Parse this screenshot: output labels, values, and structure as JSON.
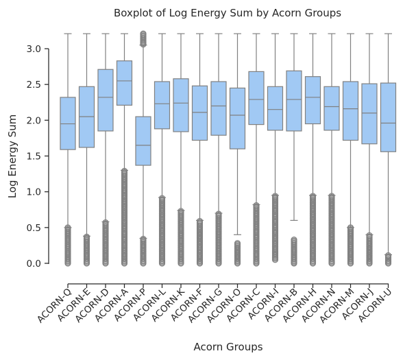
{
  "chart_data": {
    "type": "boxplot",
    "title": "Boxplot of Log Energy Sum by Acorn Groups",
    "xlabel": "Acorn Groups",
    "ylabel": "Log Energy Sum",
    "ylim": [
      -0.06,
      3.22
    ],
    "yticks": [
      0.0,
      0.5,
      1.0,
      1.5,
      2.0,
      2.5,
      3.0
    ],
    "ytick_labels": [
      "0.0",
      "0.5",
      "1.0",
      "1.5",
      "2.0",
      "2.5",
      "3.0"
    ],
    "grid": false,
    "box_color": "#a1c9f4",
    "line_color": "#808080",
    "categories": [
      "ACORN-Q",
      "ACORN-E",
      "ACORN-D",
      "ACORN-A",
      "ACORN-P",
      "ACORN-L",
      "ACORN-K",
      "ACORN-F",
      "ACORN-G",
      "ACORN-O",
      "ACORN-C",
      "ACORN-I",
      "ACORN-B",
      "ACORN-H",
      "ACORN-N",
      "ACORN-M",
      "ACORN-J",
      "ACORN-U"
    ],
    "boxes": [
      {
        "whislo": 0.5,
        "q1": 1.59,
        "med": 1.95,
        "q3": 2.32,
        "whishi": 3.21,
        "flier_low": [
          0.0,
          0.5
        ],
        "flier_high": null
      },
      {
        "whislo": 0.38,
        "q1": 1.62,
        "med": 2.05,
        "q3": 2.47,
        "whishi": 3.21,
        "flier_low": [
          0.0,
          0.37
        ],
        "flier_high": null
      },
      {
        "whislo": 0.58,
        "q1": 1.85,
        "med": 2.32,
        "q3": 2.71,
        "whishi": 3.21,
        "flier_low": [
          0.0,
          0.57
        ],
        "flier_high": null
      },
      {
        "whislo": 1.3,
        "q1": 2.21,
        "med": 2.55,
        "q3": 2.83,
        "whishi": 3.21,
        "flier_low": [
          0.0,
          1.29
        ],
        "flier_high": null
      },
      {
        "whislo": 0.35,
        "q1": 1.37,
        "med": 1.65,
        "q3": 2.05,
        "whishi": 3.05,
        "flier_low": [
          0.0,
          0.34
        ],
        "flier_high": [
          3.06,
          3.21
        ]
      },
      {
        "whislo": 0.92,
        "q1": 1.88,
        "med": 2.23,
        "q3": 2.54,
        "whishi": 3.21,
        "flier_low": [
          0.0,
          0.91
        ],
        "flier_high": null
      },
      {
        "whislo": 0.74,
        "q1": 1.84,
        "med": 2.24,
        "q3": 2.58,
        "whishi": 3.21,
        "flier_low": [
          0.0,
          0.73
        ],
        "flier_high": null
      },
      {
        "whislo": 0.6,
        "q1": 1.72,
        "med": 2.11,
        "q3": 2.48,
        "whishi": 3.21,
        "flier_low": [
          0.0,
          0.59
        ],
        "flier_high": null
      },
      {
        "whislo": 0.7,
        "q1": 1.79,
        "med": 2.2,
        "q3": 2.54,
        "whishi": 3.21,
        "flier_low": [
          0.0,
          0.69
        ],
        "flier_high": null
      },
      {
        "whislo": 0.4,
        "q1": 1.6,
        "med": 2.07,
        "q3": 2.45,
        "whishi": 3.21,
        "flier_low": [
          0.0,
          0.28
        ],
        "flier_high": null
      },
      {
        "whislo": 0.82,
        "q1": 1.94,
        "med": 2.29,
        "q3": 2.68,
        "whishi": 3.21,
        "flier_low": [
          0.0,
          0.81
        ],
        "flier_high": null
      },
      {
        "whislo": 0.95,
        "q1": 1.86,
        "med": 2.15,
        "q3": 2.47,
        "whishi": 3.21,
        "flier_low": [
          0.05,
          0.94
        ],
        "flier_high": null
      },
      {
        "whislo": 0.6,
        "q1": 1.85,
        "med": 2.29,
        "q3": 2.69,
        "whishi": 3.21,
        "flier_low": [
          0.0,
          0.33
        ],
        "flier_high": null
      },
      {
        "whislo": 0.95,
        "q1": 1.95,
        "med": 2.32,
        "q3": 2.61,
        "whishi": 3.21,
        "flier_low": [
          0.0,
          0.94
        ],
        "flier_high": null
      },
      {
        "whislo": 0.95,
        "q1": 1.86,
        "med": 2.19,
        "q3": 2.47,
        "whishi": 3.21,
        "flier_low": [
          0.0,
          0.94
        ],
        "flier_high": null
      },
      {
        "whislo": 0.5,
        "q1": 1.72,
        "med": 2.16,
        "q3": 2.54,
        "whishi": 3.21,
        "flier_low": [
          0.0,
          0.5
        ],
        "flier_high": null
      },
      {
        "whislo": 0.4,
        "q1": 1.67,
        "med": 2.1,
        "q3": 2.51,
        "whishi": 3.21,
        "flier_low": [
          0.0,
          0.39
        ],
        "flier_high": null
      },
      {
        "whislo": 0.12,
        "q1": 1.56,
        "med": 1.96,
        "q3": 2.52,
        "whishi": 3.21,
        "flier_low": [
          0.0,
          0.11
        ],
        "flier_high": null
      }
    ]
  }
}
